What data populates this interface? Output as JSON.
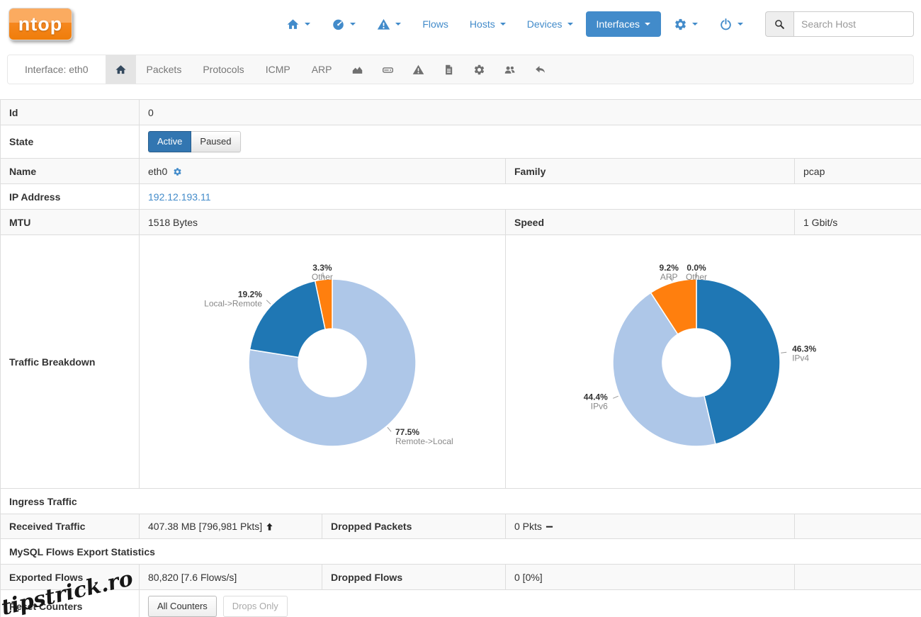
{
  "brand": {
    "logo_text": "ntop"
  },
  "colors": {
    "accent": "#428bca",
    "chart_dark_blue": "#1f77b4",
    "chart_light_blue": "#aec7e8",
    "chart_orange": "#ff7f0e",
    "subnav_icon": "#707070",
    "active_tab_icon": "#34495e"
  },
  "top_nav": {
    "items": [
      {
        "name": "home-menu",
        "icon": "home",
        "caret": true
      },
      {
        "name": "dashboard-menu",
        "icon": "dashboard",
        "caret": true
      },
      {
        "name": "alerts-menu",
        "icon": "alert-triangle",
        "caret": true
      },
      {
        "name": "flows-link",
        "label": "Flows",
        "caret": false
      },
      {
        "name": "hosts-menu",
        "label": "Hosts",
        "caret": true
      },
      {
        "name": "devices-menu",
        "label": "Devices",
        "caret": true
      },
      {
        "name": "interfaces-menu",
        "label": "Interfaces",
        "caret": true,
        "active": true
      },
      {
        "name": "settings-menu",
        "icon": "gear",
        "caret": true
      },
      {
        "name": "power-menu",
        "icon": "power",
        "caret": true
      }
    ],
    "search_placeholder": "Search Host"
  },
  "sub_nav": {
    "context_label": "Interface: eth0",
    "tabs": [
      {
        "name": "tab-home",
        "icon": "home",
        "active": true
      },
      {
        "name": "tab-packets",
        "label": "Packets"
      },
      {
        "name": "tab-protocols",
        "label": "Protocols"
      },
      {
        "name": "tab-icmp",
        "label": "ICMP"
      },
      {
        "name": "tab-arp",
        "label": "ARP"
      },
      {
        "name": "tab-chart",
        "icon": "chart-area"
      },
      {
        "name": "tab-storage",
        "icon": "hdd"
      },
      {
        "name": "tab-alerts",
        "icon": "alert-triangle"
      },
      {
        "name": "tab-report",
        "icon": "file-text"
      },
      {
        "name": "tab-settings",
        "icon": "gear"
      },
      {
        "name": "tab-users",
        "icon": "users"
      },
      {
        "name": "tab-back",
        "icon": "undo"
      }
    ]
  },
  "details": {
    "id": {
      "label": "Id",
      "value": "0"
    },
    "state": {
      "label": "State",
      "active_label": "Active",
      "paused_label": "Paused"
    },
    "name": {
      "label": "Name",
      "value": "eth0"
    },
    "family": {
      "label": "Family",
      "value": "pcap"
    },
    "ip": {
      "label": "IP Address",
      "value": "192.12.193.11"
    },
    "mtu": {
      "label": "MTU",
      "value": "1518 Bytes"
    },
    "speed": {
      "label": "Speed",
      "value": "1 Gbit/s"
    },
    "traffic_breakdown_label": "Traffic Breakdown",
    "ingress_header": "Ingress Traffic",
    "received": {
      "label": "Received Traffic",
      "value": "407.38 MB [796,981 Pkts]"
    },
    "dropped_packets": {
      "label": "Dropped Packets",
      "value": "0 Pkts"
    },
    "mysql_header": "MySQL Flows Export Statistics",
    "exported": {
      "label": "Exported Flows",
      "value": "80,820 [7.6 Flows/s]"
    },
    "dropped_flows": {
      "label": "Dropped Flows",
      "value": "0 [0%]"
    },
    "reset": {
      "label": "Reset Counters",
      "buttons": [
        {
          "label": "All Counters",
          "disabled": false
        },
        {
          "label": "Drops Only",
          "disabled": true
        }
      ]
    }
  },
  "chart_data": [
    {
      "type": "pie",
      "donut": true,
      "unit": "%",
      "legend": "outside-labels",
      "slices": [
        {
          "label": "Remote->Local",
          "value": 77.5,
          "color": "#aec7e8"
        },
        {
          "label": "Local->Remote",
          "value": 19.2,
          "color": "#1f77b4"
        },
        {
          "label": "Other",
          "value": 3.3,
          "color": "#ff7f0e"
        }
      ]
    },
    {
      "type": "pie",
      "donut": true,
      "unit": "%",
      "legend": "outside-labels",
      "slices": [
        {
          "label": "IPv4",
          "value": 46.3,
          "color": "#1f77b4"
        },
        {
          "label": "IPv6",
          "value": 44.4,
          "color": "#aec7e8"
        },
        {
          "label": "ARP",
          "value": 9.2,
          "color": "#ff7f0e"
        },
        {
          "label": "Other",
          "value": 0.0,
          "color": "#999999"
        }
      ]
    }
  ],
  "watermark": "tipstrick.ro"
}
